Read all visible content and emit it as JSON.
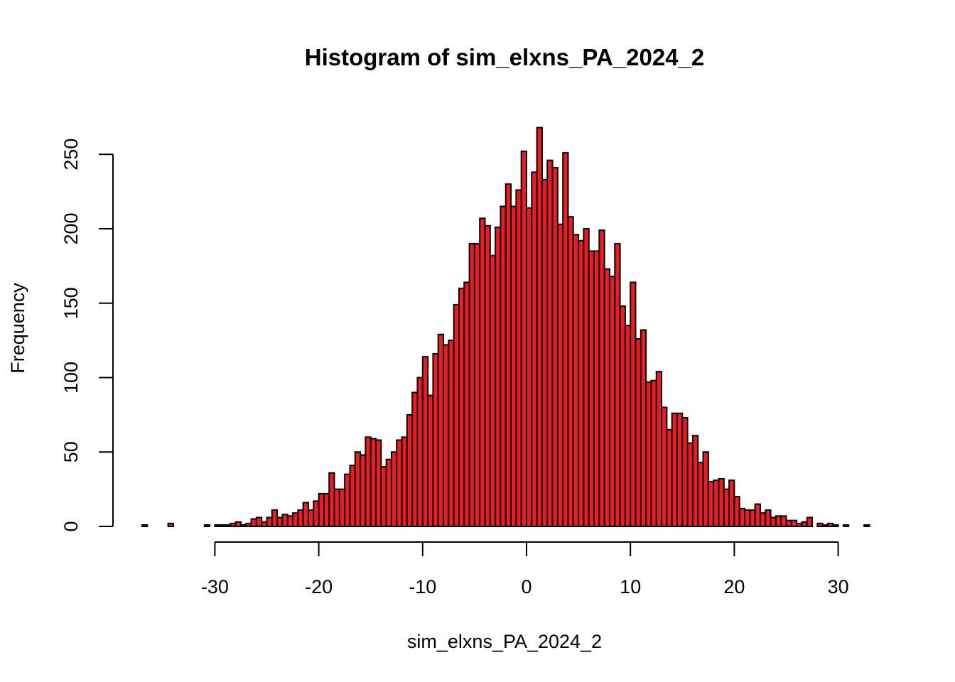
{
  "chart_data": {
    "type": "bar",
    "title": "Histogram of sim_elxns_PA_2024_2",
    "xlabel": "sim_elxns_PA_2024_2",
    "ylabel": "Frequency",
    "bar_color": "#ED1C24",
    "border_color": "#000000",
    "bin_start": -37,
    "bin_width": 0.5,
    "xlim": [
      -37,
      33
    ],
    "ylim": [
      0,
      270
    ],
    "xticks": [
      -30,
      -20,
      -10,
      0,
      10,
      20,
      30
    ],
    "yticks": [
      0,
      50,
      100,
      150,
      200,
      250
    ],
    "xtick_labels": [
      "-30",
      "-20",
      "-10",
      "0",
      "10",
      "20",
      "30"
    ],
    "ytick_labels": [
      "0",
      "50",
      "100",
      "150",
      "200",
      "250"
    ],
    "values": [
      1,
      0,
      0,
      0,
      0,
      2,
      0,
      0,
      0,
      0,
      0,
      0,
      1,
      0,
      1,
      1,
      1,
      2,
      3,
      1,
      2,
      5,
      6,
      3,
      6,
      11,
      6,
      8,
      7,
      9,
      11,
      16,
      11,
      17,
      22,
      22,
      36,
      25,
      25,
      35,
      41,
      50,
      48,
      60,
      59,
      58,
      40,
      45,
      50,
      58,
      60,
      75,
      90,
      100,
      114,
      88,
      116,
      129,
      122,
      125,
      149,
      160,
      164,
      190,
      190,
      207,
      202,
      182,
      201,
      215,
      230,
      215,
      226,
      252,
      214,
      238,
      268,
      233,
      246,
      241,
      203,
      251,
      208,
      196,
      192,
      200,
      185,
      185,
      199,
      173,
      168,
      190,
      148,
      135,
      164,
      126,
      132,
      97,
      98,
      104,
      80,
      65,
      76,
      76,
      73,
      56,
      61,
      43,
      50,
      30,
      31,
      32,
      25,
      31,
      20,
      12,
      11,
      11,
      15,
      9,
      11,
      6,
      7,
      7,
      4,
      4,
      2,
      3,
      6,
      0,
      2,
      1,
      2,
      1,
      0,
      1,
      0,
      0,
      0,
      1,
      0,
      0,
      0,
      0,
      0,
      0,
      0,
      0,
      0,
      0,
      0,
      0,
      0,
      0,
      0,
      0,
      0,
      0,
      0,
      0,
      0,
      0,
      0,
      0,
      0,
      0,
      0,
      0,
      0,
      0,
      1,
      0,
      0,
      0,
      0,
      0,
      0,
      0,
      0,
      0,
      0,
      0,
      0,
      0,
      0,
      0,
      0,
      0,
      0,
      0,
      1
    ]
  }
}
